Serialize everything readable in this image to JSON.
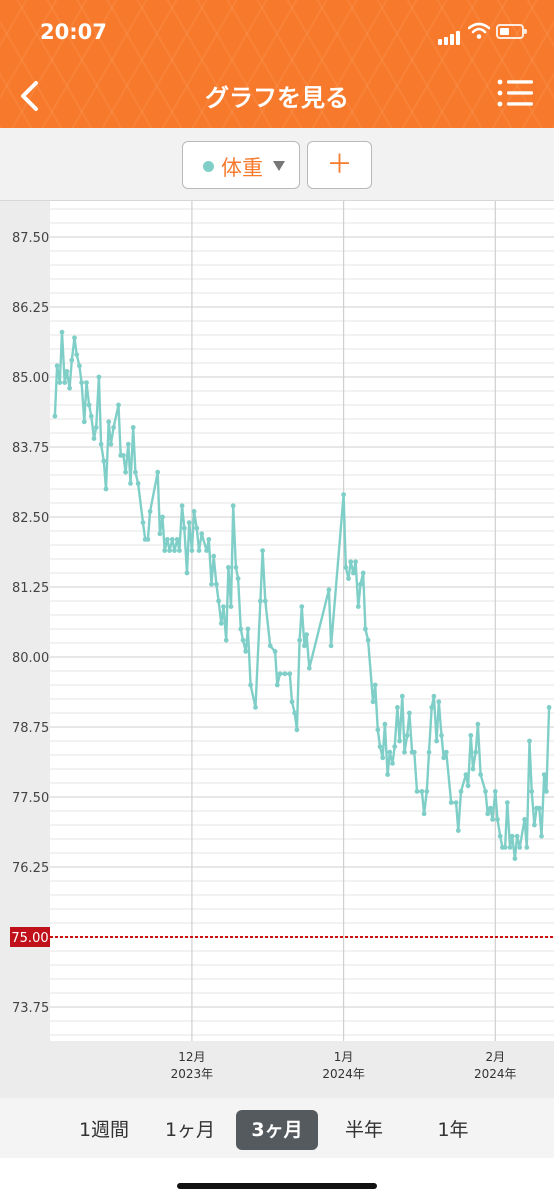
{
  "status_bar": {
    "time": "20:07"
  },
  "header": {
    "title": "グラフを見る"
  },
  "filter": {
    "series_label": "体重",
    "add_label": "＋"
  },
  "period_tabs": [
    {
      "label": "1週間",
      "active": false
    },
    {
      "label": "1ヶ月",
      "active": false
    },
    {
      "label": "3ヶ月",
      "active": true
    },
    {
      "label": "半年",
      "active": false
    },
    {
      "label": "1年",
      "active": false
    }
  ],
  "colors": {
    "brand": "#f77a2c",
    "series": "#7fcfc8",
    "target": "#cc1111"
  },
  "chart_data": {
    "type": "line",
    "ylim": [
      73.0,
      88.0
    ],
    "y_ticks": [
      "87.50",
      "86.25",
      "85.00",
      "83.75",
      "82.50",
      "81.25",
      "80.00",
      "78.75",
      "77.50",
      "76.25",
      "73.75"
    ],
    "target_line": {
      "value": 75.0,
      "label": "75.00"
    },
    "x_start": "2023-11-02",
    "x_end": "2024-02-13",
    "x_ticks": [
      {
        "date": "2023-12-01",
        "month": "12月",
        "year": "2023年"
      },
      {
        "date": "2024-01-01",
        "month": "1月",
        "year": "2024年"
      },
      {
        "date": "2024-02-01",
        "month": "2月",
        "year": "2024年"
      }
    ],
    "series": [
      {
        "points": [
          [
            "2023-11-03",
            84.3
          ],
          [
            "2023-11-03",
            85.2
          ],
          [
            "2023-11-04",
            84.9
          ],
          [
            "2023-11-04",
            85.8
          ],
          [
            "2023-11-05",
            84.9
          ],
          [
            "2023-11-05",
            85.1
          ],
          [
            "2023-11-06",
            84.8
          ],
          [
            "2023-11-06",
            85.3
          ],
          [
            "2023-11-07",
            85.7
          ],
          [
            "2023-11-07",
            85.4
          ],
          [
            "2023-11-08",
            85.2
          ],
          [
            "2023-11-08",
            84.9
          ],
          [
            "2023-11-09",
            84.2
          ],
          [
            "2023-11-09",
            84.9
          ],
          [
            "2023-11-10",
            84.5
          ],
          [
            "2023-11-10",
            84.3
          ],
          [
            "2023-11-11",
            83.9
          ],
          [
            "2023-11-11",
            84.1
          ],
          [
            "2023-11-12",
            85.0
          ],
          [
            "2023-11-12",
            83.8
          ],
          [
            "2023-11-13",
            83.5
          ],
          [
            "2023-11-13",
            83.0
          ],
          [
            "2023-11-14",
            84.2
          ],
          [
            "2023-11-14",
            83.8
          ],
          [
            "2023-11-15",
            84.1
          ],
          [
            "2023-11-16",
            84.5
          ],
          [
            "2023-11-16",
            83.6
          ],
          [
            "2023-11-17",
            83.6
          ],
          [
            "2023-11-17",
            83.3
          ],
          [
            "2023-11-18",
            83.8
          ],
          [
            "2023-11-18",
            83.1
          ],
          [
            "2023-11-19",
            84.1
          ],
          [
            "2023-11-19",
            83.3
          ],
          [
            "2023-11-20",
            83.1
          ],
          [
            "2023-11-21",
            82.4
          ],
          [
            "2023-11-21",
            82.1
          ],
          [
            "2023-11-22",
            82.1
          ],
          [
            "2023-11-22",
            82.6
          ],
          [
            "2023-11-24",
            83.3
          ],
          [
            "2023-11-24",
            82.2
          ],
          [
            "2023-11-25",
            82.5
          ],
          [
            "2023-11-25",
            81.9
          ],
          [
            "2023-11-26",
            82.1
          ],
          [
            "2023-11-26",
            81.9
          ],
          [
            "2023-11-27",
            82.1
          ],
          [
            "2023-11-27",
            81.9
          ],
          [
            "2023-11-28",
            82.1
          ],
          [
            "2023-11-28",
            81.9
          ],
          [
            "2023-11-29",
            82.7
          ],
          [
            "2023-11-29",
            82.3
          ],
          [
            "2023-11-30",
            81.5
          ],
          [
            "2023-11-30",
            82.4
          ],
          [
            "2023-12-01",
            81.9
          ],
          [
            "2023-12-01",
            82.6
          ],
          [
            "2023-12-02",
            82.3
          ],
          [
            "2023-12-02",
            81.9
          ],
          [
            "2023-12-03",
            82.2
          ],
          [
            "2023-12-04",
            81.9
          ],
          [
            "2023-12-04",
            82.1
          ],
          [
            "2023-12-05",
            81.3
          ],
          [
            "2023-12-05",
            81.8
          ],
          [
            "2023-12-06",
            81.3
          ],
          [
            "2023-12-06",
            81.0
          ],
          [
            "2023-12-07",
            80.6
          ],
          [
            "2023-12-07",
            80.9
          ],
          [
            "2023-12-08",
            80.3
          ],
          [
            "2023-12-08",
            81.6
          ],
          [
            "2023-12-09",
            80.9
          ],
          [
            "2023-12-09",
            82.7
          ],
          [
            "2023-12-10",
            81.6
          ],
          [
            "2023-12-10",
            81.4
          ],
          [
            "2023-12-11",
            80.5
          ],
          [
            "2023-12-11",
            80.3
          ],
          [
            "2023-12-12",
            80.1
          ],
          [
            "2023-12-12",
            80.5
          ],
          [
            "2023-12-13",
            79.5
          ],
          [
            "2023-12-14",
            79.1
          ],
          [
            "2023-12-15",
            81.0
          ],
          [
            "2023-12-15",
            81.9
          ],
          [
            "2023-12-16",
            81.0
          ],
          [
            "2023-12-17",
            80.2
          ],
          [
            "2023-12-18",
            80.1
          ],
          [
            "2023-12-18",
            79.5
          ],
          [
            "2023-12-19",
            79.7
          ],
          [
            "2023-12-20",
            79.7
          ],
          [
            "2023-12-21",
            79.7
          ],
          [
            "2023-12-21",
            79.2
          ],
          [
            "2023-12-22",
            79.0
          ],
          [
            "2023-12-22",
            78.7
          ],
          [
            "2023-12-23",
            80.3
          ],
          [
            "2023-12-23",
            80.9
          ],
          [
            "2023-12-24",
            80.2
          ],
          [
            "2023-12-24",
            80.4
          ],
          [
            "2023-12-25",
            79.8
          ],
          [
            "2023-12-29",
            81.2
          ],
          [
            "2023-12-29",
            80.2
          ],
          [
            "2024-01-01",
            82.9
          ],
          [
            "2024-01-01",
            81.6
          ],
          [
            "2024-01-02",
            81.4
          ],
          [
            "2024-01-02",
            81.7
          ],
          [
            "2024-01-03",
            81.5
          ],
          [
            "2024-01-03",
            81.7
          ],
          [
            "2024-01-04",
            80.9
          ],
          [
            "2024-01-04",
            81.3
          ],
          [
            "2024-01-05",
            81.5
          ],
          [
            "2024-01-05",
            80.5
          ],
          [
            "2024-01-06",
            80.3
          ],
          [
            "2024-01-07",
            79.2
          ],
          [
            "2024-01-07",
            79.5
          ],
          [
            "2024-01-08",
            78.7
          ],
          [
            "2024-01-08",
            78.4
          ],
          [
            "2024-01-09",
            78.2
          ],
          [
            "2024-01-09",
            78.8
          ],
          [
            "2024-01-10",
            77.9
          ],
          [
            "2024-01-10",
            78.3
          ],
          [
            "2024-01-11",
            78.1
          ],
          [
            "2024-01-11",
            78.4
          ],
          [
            "2024-01-12",
            79.1
          ],
          [
            "2024-01-12",
            78.5
          ],
          [
            "2024-01-13",
            79.3
          ],
          [
            "2024-01-13",
            78.3
          ],
          [
            "2024-01-14",
            78.6
          ],
          [
            "2024-01-14",
            79.0
          ],
          [
            "2024-01-15",
            78.3
          ],
          [
            "2024-01-15",
            78.3
          ],
          [
            "2024-01-16",
            77.6
          ],
          [
            "2024-01-17",
            77.6
          ],
          [
            "2024-01-17",
            77.2
          ],
          [
            "2024-01-18",
            77.6
          ],
          [
            "2024-01-18",
            78.3
          ],
          [
            "2024-01-19",
            79.1
          ],
          [
            "2024-01-19",
            79.3
          ],
          [
            "2024-01-20",
            78.5
          ],
          [
            "2024-01-20",
            79.2
          ],
          [
            "2024-01-21",
            78.6
          ],
          [
            "2024-01-21",
            78.2
          ],
          [
            "2024-01-22",
            78.3
          ],
          [
            "2024-01-23",
            77.4
          ],
          [
            "2024-01-24",
            77.4
          ],
          [
            "2024-01-24",
            76.9
          ],
          [
            "2024-01-25",
            77.6
          ],
          [
            "2024-01-26",
            77.9
          ],
          [
            "2024-01-26",
            77.7
          ],
          [
            "2024-01-27",
            78.6
          ],
          [
            "2024-01-27",
            78.0
          ],
          [
            "2024-01-28",
            78.3
          ],
          [
            "2024-01-28",
            78.8
          ],
          [
            "2024-01-29",
            77.9
          ],
          [
            "2024-01-30",
            77.6
          ],
          [
            "2024-01-30",
            77.2
          ],
          [
            "2024-01-31",
            77.3
          ],
          [
            "2024-01-31",
            77.1
          ],
          [
            "2024-02-01",
            77.6
          ],
          [
            "2024-02-01",
            77.1
          ],
          [
            "2024-02-02",
            76.8
          ],
          [
            "2024-02-02",
            76.6
          ],
          [
            "2024-02-03",
            76.6
          ],
          [
            "2024-02-03",
            77.4
          ],
          [
            "2024-02-04",
            76.6
          ],
          [
            "2024-02-04",
            76.8
          ],
          [
            "2024-02-05",
            76.4
          ],
          [
            "2024-02-05",
            76.8
          ],
          [
            "2024-02-06",
            76.6
          ],
          [
            "2024-02-07",
            77.1
          ],
          [
            "2024-02-07",
            76.6
          ],
          [
            "2024-02-08",
            78.5
          ],
          [
            "2024-02-08",
            77.6
          ],
          [
            "2024-02-09",
            77.0
          ],
          [
            "2024-02-09",
            77.3
          ],
          [
            "2024-02-10",
            77.3
          ],
          [
            "2024-02-10",
            76.8
          ],
          [
            "2024-02-11",
            77.9
          ],
          [
            "2024-02-11",
            77.6
          ],
          [
            "2024-02-12",
            79.1
          ]
        ]
      }
    ]
  }
}
